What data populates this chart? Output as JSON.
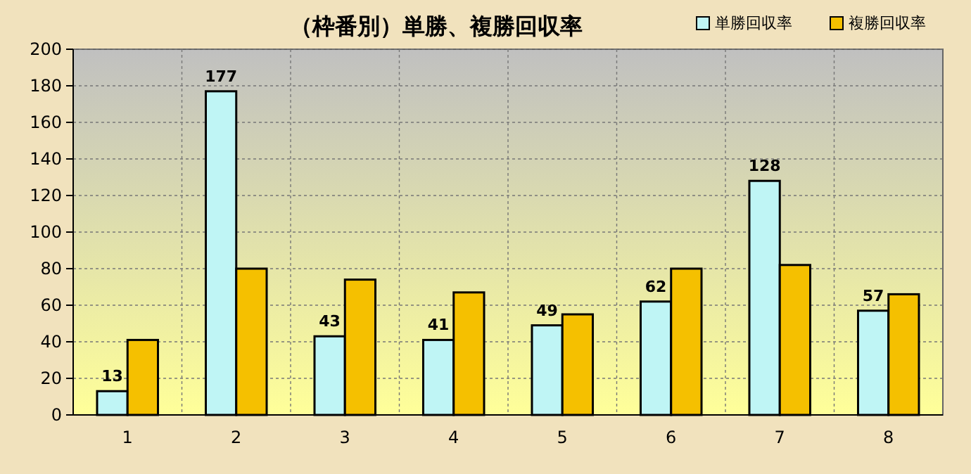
{
  "chart_data": {
    "type": "bar",
    "title": "（枠番別）単勝、複勝回収率",
    "categories": [
      "1",
      "2",
      "3",
      "4",
      "5",
      "6",
      "7",
      "8"
    ],
    "series": [
      {
        "name": "単勝回収率",
        "color": "#bff5f5",
        "values": [
          13,
          177,
          43,
          41,
          49,
          62,
          128,
          57
        ],
        "value_labels": [
          "13",
          "177",
          "43",
          "41",
          "49",
          "62",
          "128",
          "57"
        ]
      },
      {
        "name": "複勝回収率",
        "color": "#f5c000",
        "values": [
          41,
          80,
          74,
          67,
          55,
          80,
          82,
          66
        ]
      }
    ],
    "ylim": [
      0,
      200
    ],
    "yticks": [
      0,
      20,
      40,
      60,
      80,
      100,
      120,
      140,
      160,
      180,
      200
    ],
    "grid": true,
    "legend": "top right"
  }
}
